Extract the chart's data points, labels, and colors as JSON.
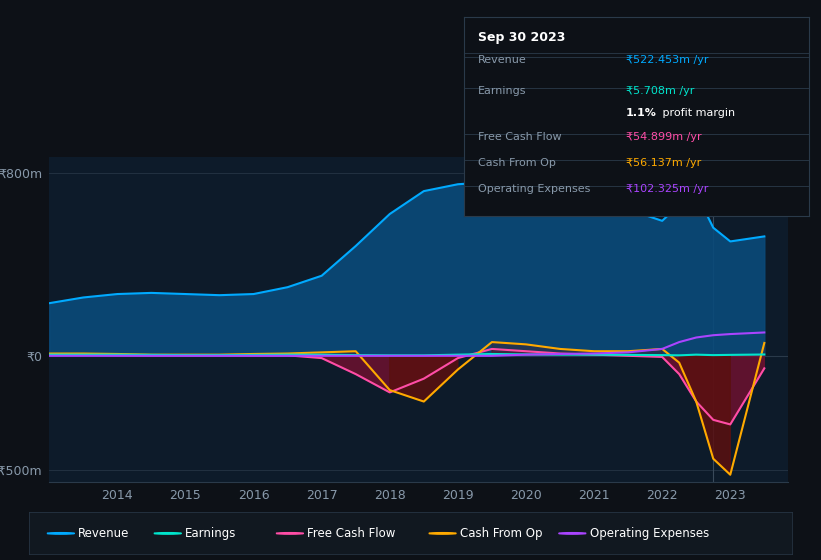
{
  "background_color": "#0d1117",
  "plot_bg_color": "#0d1b2a",
  "grid_color": "#2a3a4a",
  "ylim": [
    -550,
    870
  ],
  "years": [
    2013.0,
    2013.5,
    2014.0,
    2014.5,
    2015.0,
    2015.5,
    2016.0,
    2016.5,
    2017.0,
    2017.5,
    2018.0,
    2018.5,
    2019.0,
    2019.5,
    2020.0,
    2020.5,
    2021.0,
    2021.5,
    2022.0,
    2022.25,
    2022.5,
    2022.75,
    2023.0,
    2023.5
  ],
  "revenue": [
    230,
    255,
    270,
    275,
    270,
    265,
    270,
    300,
    350,
    480,
    620,
    720,
    750,
    760,
    750,
    730,
    700,
    640,
    590,
    660,
    710,
    560,
    500,
    522
  ],
  "earnings": [
    5,
    5,
    5,
    4,
    3,
    3,
    4,
    5,
    5,
    3,
    2,
    2,
    5,
    8,
    6,
    5,
    5,
    4,
    3,
    2,
    5,
    3,
    4,
    5.7
  ],
  "free_cash_flow": [
    5,
    4,
    3,
    2,
    2,
    2,
    2,
    2,
    -10,
    -80,
    -160,
    -100,
    -10,
    30,
    20,
    10,
    5,
    0,
    -5,
    -80,
    -200,
    -280,
    -300,
    -54.9
  ],
  "cash_from_op": [
    10,
    10,
    8,
    5,
    5,
    5,
    8,
    10,
    15,
    20,
    -150,
    -200,
    -60,
    60,
    50,
    30,
    20,
    20,
    30,
    -30,
    -200,
    -450,
    -520,
    56.1
  ],
  "operating_expenses": [
    0,
    0,
    0,
    0,
    0,
    0,
    0,
    0,
    0,
    0,
    0,
    0,
    0,
    0,
    5,
    8,
    10,
    15,
    30,
    60,
    80,
    90,
    95,
    102
  ],
  "revenue_color": "#00aaff",
  "revenue_fill": "#0a4a7a",
  "earnings_color": "#00e5cc",
  "free_cash_flow_color": "#ff4da6",
  "free_cash_flow_fill": "#7a1030",
  "cash_from_op_color": "#ffaa00",
  "cash_from_op_fill": "#5a1010",
  "operating_expenses_color": "#aa44ff",
  "tooltip_bg": "#0d1117",
  "tooltip_border": "#2a3a4a",
  "tooltip_title": "Sep 30 2023",
  "legend_items": [
    {
      "label": "Revenue",
      "color": "#00aaff"
    },
    {
      "label": "Earnings",
      "color": "#00e5cc"
    },
    {
      "label": "Free Cash Flow",
      "color": "#ff4da6"
    },
    {
      "label": "Cash From Op",
      "color": "#ffaa00"
    },
    {
      "label": "Operating Expenses",
      "color": "#aa44ff"
    }
  ],
  "xlabel_years": [
    2014,
    2015,
    2016,
    2017,
    2018,
    2019,
    2020,
    2021,
    2022,
    2023
  ]
}
